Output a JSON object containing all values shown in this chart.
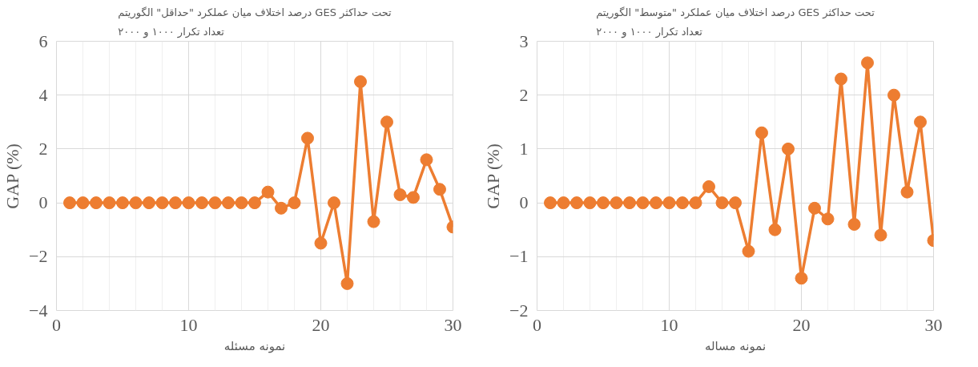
{
  "chart_data": [
    {
      "type": "line",
      "title": "درصد اختلاف میان عملکرد \"حداقل\" الگوریتم GES تحت حداکثر\nتعداد تکرار ۱۰۰۰ و ۲۰۰۰",
      "xlabel": "نمونه مسئله",
      "ylabel": "GAP (%)",
      "x": [
        1,
        2,
        3,
        4,
        5,
        6,
        7,
        8,
        9,
        10,
        11,
        12,
        13,
        14,
        15,
        16,
        17,
        18,
        19,
        20,
        21,
        22,
        23,
        24,
        25,
        26,
        27,
        28,
        29,
        30
      ],
      "series": [
        {
          "color": "#ed7d31",
          "values": [
            0,
            0,
            0,
            0,
            0,
            0,
            0,
            0,
            0,
            0,
            0,
            0,
            0,
            0,
            0,
            0.4,
            -0.2,
            0,
            2.4,
            -1.5,
            0,
            -3,
            4.5,
            -0.7,
            3,
            0.3,
            0.2,
            1.6,
            0.5,
            -0.9
          ]
        }
      ],
      "xlim": [
        0,
        30
      ],
      "xticks": [
        0,
        10,
        20,
        30
      ],
      "ylim": [
        -4,
        6
      ],
      "yticks": [
        -4,
        -2,
        0,
        2,
        4,
        6
      ],
      "grid": true,
      "marker": "circle",
      "line_style": "solid"
    },
    {
      "type": "line",
      "title": "درصد اختلاف میان عملکرد \"متوسط\" الگوریتم GES تحت حداکثر\nتعداد تکرار ۱۰۰۰ و ۲۰۰۰",
      "xlabel": "نمونه مساله",
      "ylabel": "GAP (%)",
      "x": [
        1,
        2,
        3,
        4,
        5,
        6,
        7,
        8,
        9,
        10,
        11,
        12,
        13,
        14,
        15,
        16,
        17,
        18,
        19,
        20,
        21,
        22,
        23,
        24,
        25,
        26,
        27,
        28,
        29,
        30
      ],
      "series": [
        {
          "color": "#ed7d31",
          "values": [
            0,
            0,
            0,
            0,
            0,
            0,
            0,
            0,
            0,
            0,
            0,
            0,
            0.3,
            0,
            0,
            -0.9,
            1.3,
            -0.5,
            1.0,
            -1.4,
            -0.1,
            -0.3,
            2.3,
            -0.4,
            2.6,
            -0.6,
            2.0,
            0.2,
            1.5,
            -0.7
          ]
        }
      ],
      "xlim": [
        0,
        30
      ],
      "xticks": [
        0,
        10,
        20,
        30
      ],
      "ylim": [
        -2,
        3
      ],
      "yticks": [
        -2,
        -1,
        0,
        1,
        2,
        3
      ],
      "grid": true,
      "marker": "circle",
      "line_style": "solid"
    }
  ]
}
